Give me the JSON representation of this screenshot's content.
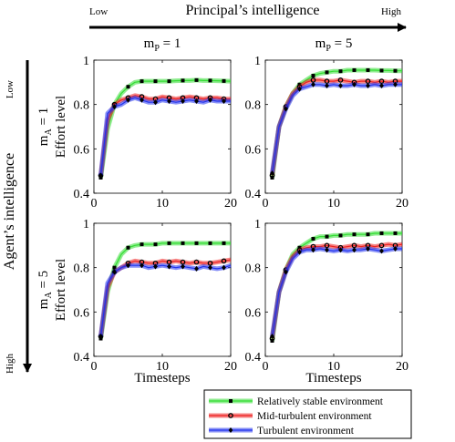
{
  "labels": {
    "top_low": "Low",
    "top_axis": "Principal’s intelligence",
    "top_high": "High",
    "left_low": "Low",
    "left_axis": "Agent’s intelligence",
    "left_high": "High",
    "col1_base": "m",
    "col1_sub": "P",
    "col1_rest": " = 1",
    "col2_base": "m",
    "col2_sub": "P",
    "col2_rest": " = 5",
    "row1_base": "m",
    "row1_sub": "A",
    "row1_rest": " = 1",
    "row2_base": "m",
    "row2_sub": "A",
    "row2_rest": " = 5",
    "ylabel": "Effort level",
    "xlabel": "Timesteps"
  },
  "colors": {
    "stable": "#33dd33",
    "mid": "#ee2222",
    "turbulent": "#2233ee",
    "marker": "#000000"
  },
  "legend": [
    {
      "key": "stable",
      "label": "Relatively stable environment",
      "marker": "square"
    },
    {
      "key": "mid",
      "label": "Mid-turbulent environment",
      "marker": "circle"
    },
    {
      "key": "turbulent",
      "label": "Turbulent environment",
      "marker": "diamond"
    }
  ],
  "chart_data": [
    {
      "type": "line",
      "panel": "mA=1, mP=1",
      "xlim": [
        0,
        20
      ],
      "ylim": [
        0.4,
        1
      ],
      "xticks": [
        0,
        10,
        20
      ],
      "yticks": [
        "0.4",
        "0.6",
        "0.8",
        "1"
      ],
      "x": [
        1,
        2,
        3,
        4,
        5,
        6,
        7,
        8,
        9,
        10,
        11,
        12,
        13,
        14,
        15,
        16,
        17,
        18,
        19,
        20
      ],
      "series": [
        {
          "key": "stable",
          "values": [
            0.47,
            0.69,
            0.8,
            0.85,
            0.88,
            0.9,
            0.905,
            0.905,
            0.905,
            0.905,
            0.905,
            0.907,
            0.908,
            0.908,
            0.91,
            0.908,
            0.908,
            0.907,
            0.906,
            0.905
          ]
        },
        {
          "key": "mid",
          "values": [
            0.48,
            0.73,
            0.8,
            0.82,
            0.83,
            0.84,
            0.835,
            0.825,
            0.825,
            0.835,
            0.83,
            0.825,
            0.83,
            0.835,
            0.83,
            0.825,
            0.83,
            0.83,
            0.825,
            0.825
          ]
        },
        {
          "key": "turbulent",
          "values": [
            0.48,
            0.76,
            0.79,
            0.8,
            0.82,
            0.83,
            0.82,
            0.81,
            0.81,
            0.82,
            0.815,
            0.81,
            0.815,
            0.82,
            0.815,
            0.81,
            0.82,
            0.815,
            0.815,
            0.815
          ]
        }
      ]
    },
    {
      "type": "line",
      "panel": "mA=1, mP=5",
      "xlim": [
        0,
        20
      ],
      "ylim": [
        0.4,
        1
      ],
      "xticks": [
        0,
        10,
        20
      ],
      "yticks": [
        "0.4",
        "0.6",
        "0.8",
        "1"
      ],
      "x": [
        1,
        2,
        3,
        4,
        5,
        6,
        7,
        8,
        9,
        10,
        11,
        12,
        13,
        14,
        15,
        16,
        17,
        18,
        19,
        20
      ],
      "series": [
        {
          "key": "stable",
          "values": [
            0.47,
            0.7,
            0.79,
            0.85,
            0.89,
            0.91,
            0.93,
            0.94,
            0.945,
            0.95,
            0.95,
            0.955,
            0.955,
            0.955,
            0.955,
            0.955,
            0.953,
            0.953,
            0.952,
            0.952
          ]
        },
        {
          "key": "mid",
          "values": [
            0.48,
            0.7,
            0.79,
            0.85,
            0.88,
            0.9,
            0.91,
            0.91,
            0.905,
            0.905,
            0.91,
            0.905,
            0.9,
            0.905,
            0.905,
            0.9,
            0.905,
            0.9,
            0.905,
            0.905
          ]
        },
        {
          "key": "turbulent",
          "values": [
            0.49,
            0.7,
            0.78,
            0.84,
            0.87,
            0.88,
            0.89,
            0.89,
            0.885,
            0.89,
            0.885,
            0.885,
            0.89,
            0.885,
            0.885,
            0.89,
            0.885,
            0.89,
            0.89,
            0.89
          ]
        }
      ]
    },
    {
      "type": "line",
      "panel": "mA=5, mP=1",
      "xlim": [
        0,
        20
      ],
      "ylim": [
        0.4,
        1
      ],
      "xticks": [
        0,
        10,
        20
      ],
      "yticks": [
        "0.4",
        "0.6",
        "0.8",
        "1"
      ],
      "x": [
        1,
        2,
        3,
        4,
        5,
        6,
        7,
        8,
        9,
        10,
        11,
        12,
        13,
        14,
        15,
        16,
        17,
        18,
        19,
        20
      ],
      "series": [
        {
          "key": "stable",
          "values": [
            0.48,
            0.69,
            0.8,
            0.86,
            0.89,
            0.9,
            0.905,
            0.905,
            0.905,
            0.91,
            0.91,
            0.91,
            0.91,
            0.91,
            0.91,
            0.91,
            0.91,
            0.91,
            0.91,
            0.91
          ]
        },
        {
          "key": "mid",
          "values": [
            0.49,
            0.71,
            0.78,
            0.8,
            0.82,
            0.83,
            0.825,
            0.82,
            0.82,
            0.83,
            0.825,
            0.83,
            0.825,
            0.82,
            0.825,
            0.82,
            0.82,
            0.825,
            0.83,
            0.835
          ]
        },
        {
          "key": "turbulent",
          "values": [
            0.49,
            0.73,
            0.78,
            0.8,
            0.81,
            0.81,
            0.81,
            0.8,
            0.805,
            0.81,
            0.805,
            0.8,
            0.805,
            0.8,
            0.795,
            0.805,
            0.8,
            0.795,
            0.8,
            0.81
          ]
        }
      ]
    },
    {
      "type": "line",
      "panel": "mA=5, mP=5",
      "xlim": [
        0,
        20
      ],
      "ylim": [
        0.4,
        1
      ],
      "xticks": [
        0,
        10,
        20
      ],
      "yticks": [
        "0.4",
        "0.6",
        "0.8",
        "1"
      ],
      "x": [
        1,
        2,
        3,
        4,
        5,
        6,
        7,
        8,
        9,
        10,
        11,
        12,
        13,
        14,
        15,
        16,
        17,
        18,
        19,
        20
      ],
      "series": [
        {
          "key": "stable",
          "values": [
            0.47,
            0.69,
            0.79,
            0.86,
            0.89,
            0.91,
            0.93,
            0.94,
            0.94,
            0.945,
            0.945,
            0.95,
            0.95,
            0.95,
            0.95,
            0.955,
            0.955,
            0.955,
            0.955,
            0.955
          ]
        },
        {
          "key": "mid",
          "values": [
            0.48,
            0.69,
            0.79,
            0.85,
            0.88,
            0.89,
            0.895,
            0.895,
            0.9,
            0.895,
            0.89,
            0.895,
            0.9,
            0.895,
            0.9,
            0.895,
            0.9,
            0.905,
            0.9,
            0.905
          ]
        },
        {
          "key": "turbulent",
          "values": [
            0.49,
            0.69,
            0.78,
            0.84,
            0.87,
            0.88,
            0.88,
            0.885,
            0.88,
            0.875,
            0.88,
            0.875,
            0.88,
            0.88,
            0.885,
            0.88,
            0.875,
            0.88,
            0.885,
            0.885
          ]
        }
      ]
    }
  ]
}
